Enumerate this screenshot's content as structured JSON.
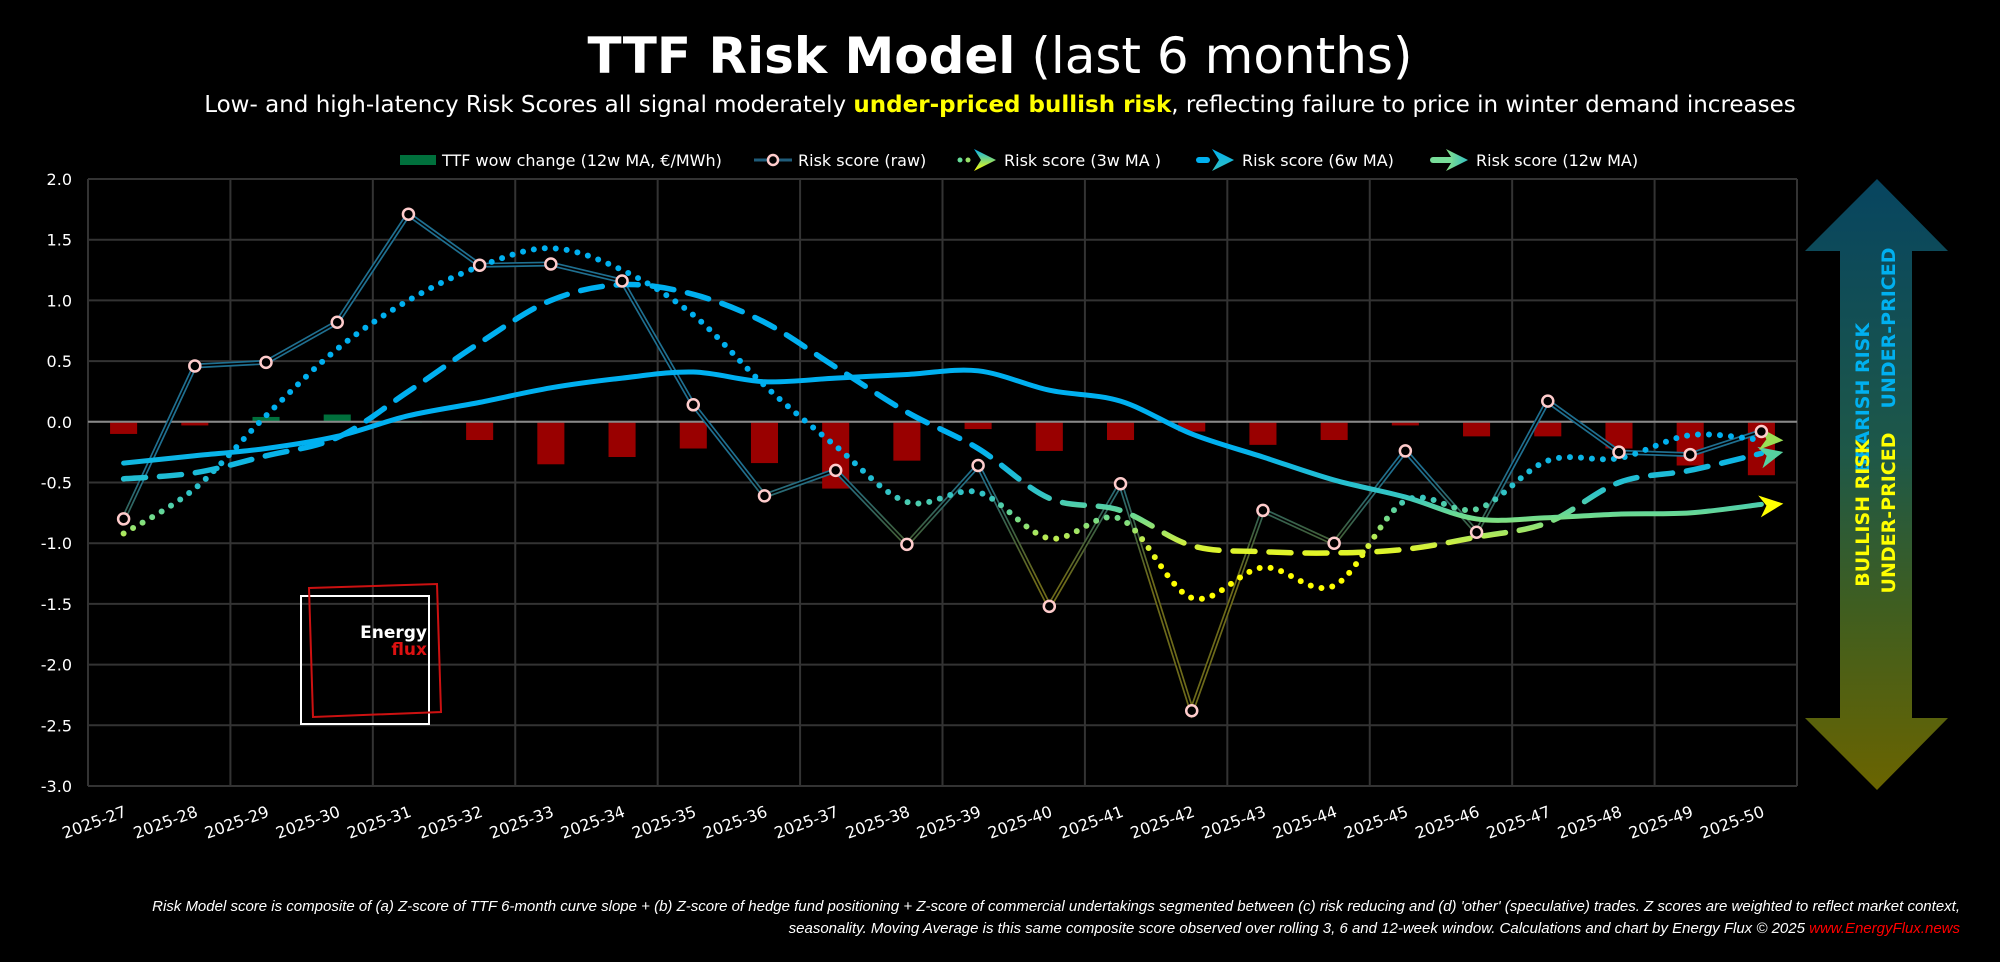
{
  "header": {
    "title_bold": "TTF Risk Model",
    "title_light": " (last 6 months)",
    "subtitle_pre": "Low- and high-latency Risk Scores all signal moderately ",
    "subtitle_highlight": "under-priced bullish risk",
    "subtitle_post": ", reflecting failure to price in winter demand increases"
  },
  "legend": [
    {
      "label": "TTF wow change (12w MA, €/MWh)",
      "icon": "green-bar-swatch"
    },
    {
      "label": "Risk score (raw)",
      "icon": "circle-marker-line"
    },
    {
      "label": "Risk score (3w MA )",
      "icon": "dotted-arrow"
    },
    {
      "label": "Risk score (6w MA)",
      "icon": "dashed-arrow"
    },
    {
      "label": "Risk score (12w MA)",
      "icon": "solid-arrow"
    }
  ],
  "side_arrow": {
    "top_line1": "BEARISH RISK",
    "top_line2": "UNDER-PRICED",
    "bottom_line1": "BULLISH RISK",
    "bottom_line2": "UNDER-PRICED",
    "top_text_color": "#00b0f0",
    "bottom_text_color": "#ffff00"
  },
  "logo": {
    "line1": "Energy",
    "line2": "flux"
  },
  "footer": {
    "line1": "Risk Model score is composite of (a) Z-score of TTF 6-month curve slope + (b) Z-score of hedge fund positioning + Z-score of commercial undertakings segmented between (c) risk reducing and (d) 'other' (speculative) trades. Z scores are weighted to reflect market context,",
    "line2": "seasonality. Moving Average is this same composite score observed over rolling 3, 6 and 12-week window. Calculations and chart by Energy Flux © 2025 ",
    "link": "www.EnergyFlux.news"
  },
  "colors": {
    "bar_positive": "#00703c",
    "bar_negative": "#990000",
    "raw_marker": "#ffcccc",
    "bullish": "#ffff00",
    "neutral": "#66dd99",
    "bearish": "#00b0f0",
    "grid": "#333333",
    "zero_line": "#888888"
  },
  "chart_data": {
    "type": "line",
    "title": "TTF Risk Model (last 6 months)",
    "xlabel": "",
    "ylabel": "",
    "ylim": [
      -3.0,
      2.0
    ],
    "yticks": [
      "2.0",
      "1.5",
      "1.0",
      "0.5",
      "0.0",
      "-0.5",
      "-1.0",
      "-1.5",
      "-2.0",
      "-2.5",
      "-3.0"
    ],
    "ytick_values": [
      2.0,
      1.5,
      1.0,
      0.5,
      0.0,
      -0.5,
      -1.0,
      -1.5,
      -2.0,
      -2.5,
      -3.0
    ],
    "grid": true,
    "legend_position": "top",
    "categories": [
      "2025-27",
      "2025-28",
      "2025-29",
      "2025-30",
      "2025-31",
      "2025-32",
      "2025-33",
      "2025-34",
      "2025-35",
      "2025-36",
      "2025-37",
      "2025-38",
      "2025-39",
      "2025-40",
      "2025-41",
      "2025-42",
      "2025-43",
      "2025-44",
      "2025-45",
      "2025-46",
      "2025-47",
      "2025-48",
      "2025-49",
      "2025-50"
    ],
    "series": [
      {
        "name": "TTF wow change (12w MA, €/MWh)",
        "type": "bar",
        "values": [
          -0.1,
          -0.03,
          0.04,
          0.06,
          0.0,
          -0.15,
          -0.35,
          -0.29,
          -0.22,
          -0.34,
          -0.55,
          -0.32,
          -0.06,
          -0.24,
          -0.15,
          -0.08,
          -0.19,
          -0.15,
          -0.03,
          -0.12,
          -0.12,
          -0.22,
          -0.36,
          -0.44
        ]
      },
      {
        "name": "Risk score (raw)",
        "type": "line-marker",
        "values": [
          -0.8,
          0.46,
          0.49,
          0.82,
          1.71,
          1.29,
          1.3,
          1.16,
          0.14,
          -0.61,
          -0.4,
          -1.01,
          -0.36,
          -1.52,
          -0.51,
          -2.38,
          -0.73,
          -1.0,
          -0.24,
          -0.91,
          0.17,
          -0.25,
          -0.27,
          -0.08
        ]
      },
      {
        "name": "Risk score (3w MA )",
        "type": "dotted",
        "values": [
          -0.92,
          -0.55,
          0.05,
          0.6,
          1.0,
          1.28,
          1.43,
          1.25,
          0.88,
          0.3,
          -0.2,
          -0.66,
          -0.58,
          -0.96,
          -0.8,
          -1.45,
          -1.2,
          -1.35,
          -0.65,
          -0.72,
          -0.32,
          -0.3,
          -0.11,
          -0.15
        ]
      },
      {
        "name": "Risk score (6w MA)",
        "type": "dashed",
        "values": [
          -0.47,
          -0.42,
          -0.28,
          -0.13,
          0.25,
          0.65,
          1.0,
          1.13,
          1.05,
          0.82,
          0.45,
          0.08,
          -0.22,
          -0.63,
          -0.73,
          -1.02,
          -1.07,
          -1.08,
          -1.05,
          -0.95,
          -0.83,
          -0.5,
          -0.4,
          -0.26
        ]
      },
      {
        "name": "Risk score (12w MA)",
        "type": "solid",
        "values": [
          -0.34,
          -0.28,
          -0.22,
          -0.12,
          0.05,
          0.16,
          0.28,
          0.36,
          0.41,
          0.33,
          0.36,
          0.39,
          0.42,
          0.26,
          0.17,
          -0.1,
          -0.29,
          -0.48,
          -0.62,
          -0.8,
          -0.79,
          -0.76,
          -0.75,
          -0.68
        ]
      }
    ]
  }
}
